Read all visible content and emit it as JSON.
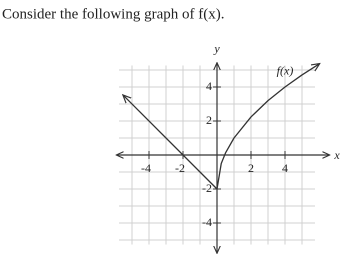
{
  "chart_data": {
    "type": "line",
    "title": "Consider the following graph of f(x).",
    "x_label": "x",
    "y_label": "y",
    "xlim": [
      -6,
      6
    ],
    "ylim": [
      -5.5,
      5.5
    ],
    "xticks": [
      -4,
      -2,
      2,
      4
    ],
    "yticks": [
      4,
      2,
      -2,
      -4
    ],
    "grid": true,
    "color": "#333333",
    "series": [
      {
        "x": [
          -5.5,
          0
        ],
        "values": [
          3.5,
          -2
        ]
      },
      {
        "name": "f(x)",
        "x": [
          0,
          0.25,
          0.5,
          1,
          2,
          3,
          4,
          5,
          6
        ],
        "values": [
          -2,
          -0.5,
          0.12,
          1,
          2.24,
          3.2,
          4,
          4.71,
          5.35
        ]
      }
    ]
  }
}
